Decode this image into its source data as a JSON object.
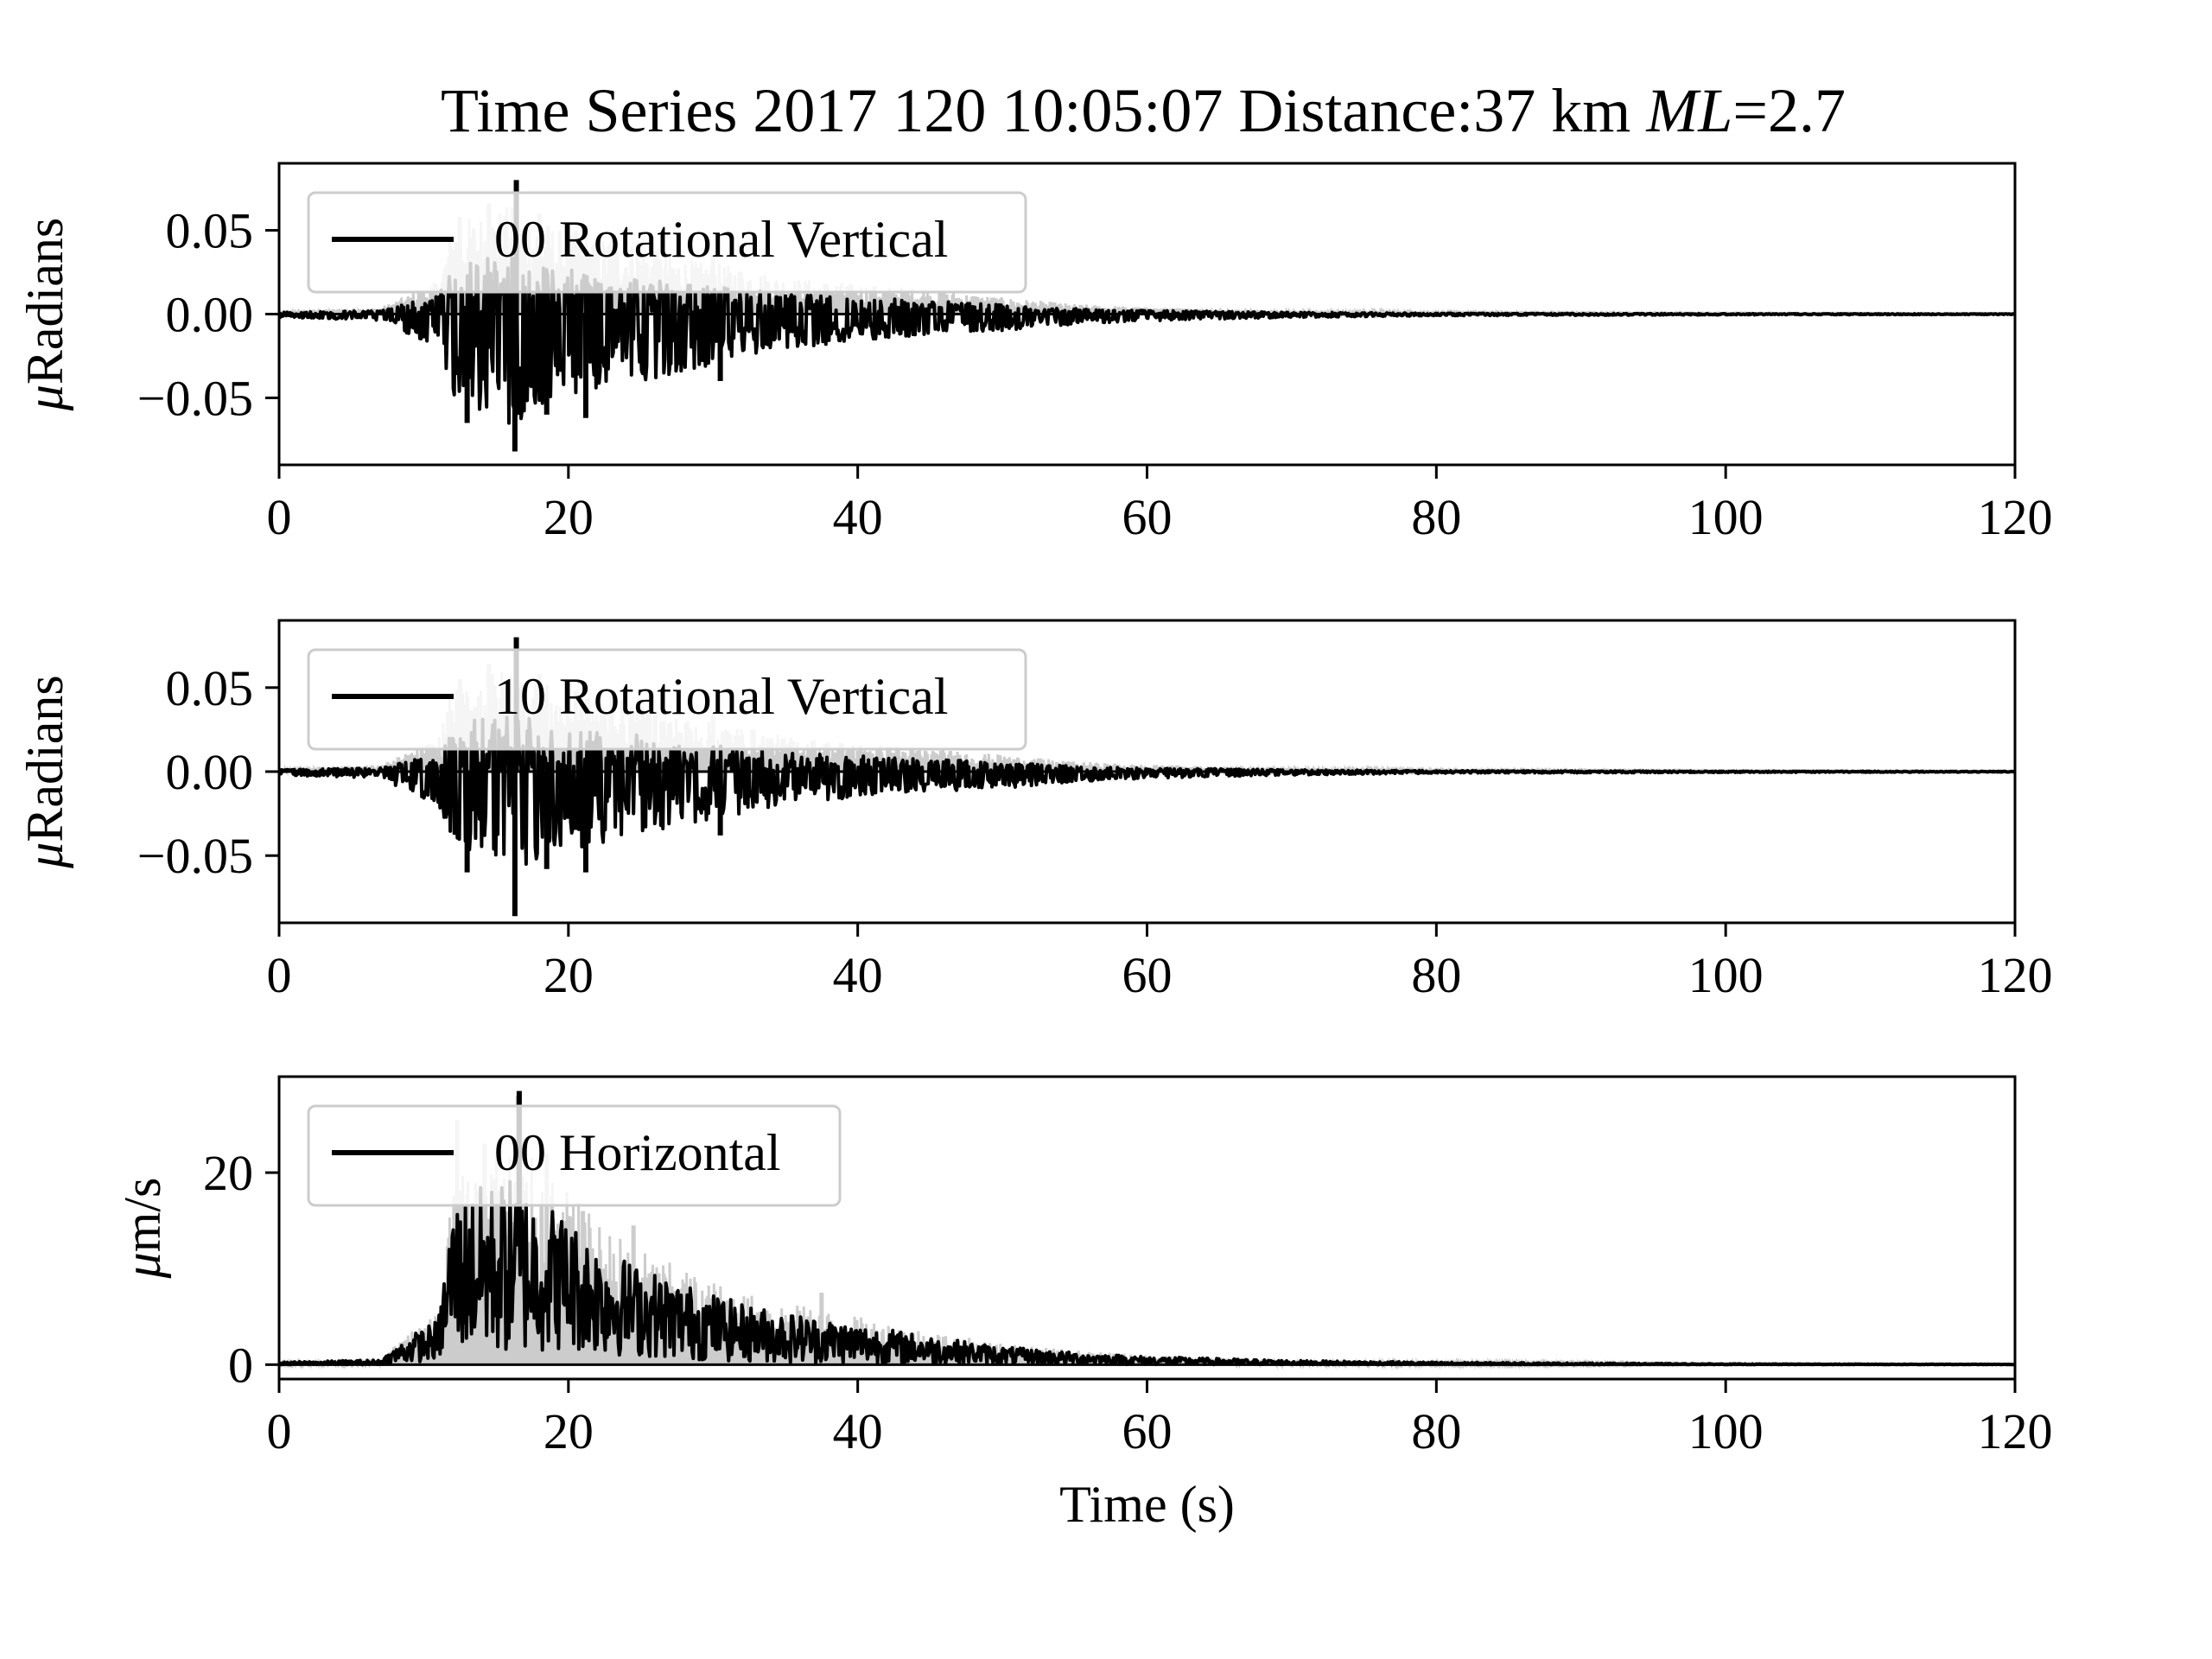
{
  "title": {
    "prefix": "Time Series 2017 120 10:05:07 Distance:37 km ",
    "ml_italic": "ML",
    "suffix": "=2.7"
  },
  "colors": {
    "trace": "#000000",
    "envelope": "#cccccc",
    "legend_border": "#cccccc",
    "background": "#ffffff"
  },
  "chart_data": [
    {
      "type": "line",
      "legend": "00 Rotational Vertical",
      "legend_location": "upper-left",
      "ylabel_mu": "μ",
      "ylabel_unit": "Radians",
      "xlabel": "",
      "xlim": [
        0,
        120
      ],
      "ylim": [
        -0.09,
        0.09
      ],
      "xticks": [
        0,
        20,
        40,
        60,
        80,
        100,
        120
      ],
      "yticks": [
        -0.05,
        0.0,
        0.05
      ],
      "ytick_labels": [
        "−0.05",
        "0.00",
        "0.05"
      ],
      "envelope_series": {
        "name": "envelope",
        "x": [
          0,
          7,
          9,
          11,
          12,
          14,
          16,
          18,
          20,
          22,
          25,
          28,
          32,
          35,
          40,
          45,
          50,
          55,
          60,
          70,
          80,
          100,
          120
        ],
        "values": [
          0.002,
          0.004,
          0.012,
          0.02,
          0.055,
          0.06,
          0.065,
          0.058,
          0.048,
          0.047,
          0.042,
          0.033,
          0.028,
          0.022,
          0.018,
          0.015,
          0.01,
          0.006,
          0.004,
          0.002,
          0.001,
          0.0005,
          0.0003
        ]
      },
      "envelope_peaks": [
        {
          "x": 12.5,
          "y": 0.058
        },
        {
          "x": 14.5,
          "y": 0.066
        },
        {
          "x": 16.4,
          "y": 0.077
        },
        {
          "x": 18.0,
          "y": 0.06
        },
        {
          "x": 20.5,
          "y": 0.05
        },
        {
          "x": 23.0,
          "y": 0.048
        },
        {
          "x": 26.0,
          "y": 0.038
        },
        {
          "x": 30.0,
          "y": 0.035
        }
      ],
      "negative_envelope": {
        "x": [
          0,
          7,
          9,
          11,
          12,
          14,
          16,
          18,
          20,
          22,
          25,
          28,
          32,
          35,
          40,
          45,
          50,
          55,
          60,
          70,
          80,
          100,
          120
        ],
        "values": [
          -0.002,
          -0.004,
          -0.012,
          -0.02,
          -0.05,
          -0.06,
          -0.068,
          -0.06,
          -0.05,
          -0.045,
          -0.04,
          -0.034,
          -0.026,
          -0.02,
          -0.017,
          -0.012,
          -0.01,
          -0.006,
          -0.004,
          -0.002,
          -0.001,
          -0.0005,
          -0.0003
        ]
      },
      "negative_peaks": [
        {
          "x": 13.0,
          "y": -0.065
        },
        {
          "x": 16.3,
          "y": -0.082
        },
        {
          "x": 18.5,
          "y": -0.06
        },
        {
          "x": 21.2,
          "y": -0.062
        },
        {
          "x": 30.5,
          "y": -0.04
        }
      ],
      "trace_peak": {
        "x": 16.4,
        "y": 0.08
      }
    },
    {
      "type": "line",
      "legend": "10 Rotational Vertical",
      "legend_location": "upper-left",
      "ylabel_mu": "μ",
      "ylabel_unit": "Radians",
      "xlabel": "",
      "xlim": [
        0,
        120
      ],
      "ylim": [
        -0.09,
        0.09
      ],
      "xticks": [
        0,
        20,
        40,
        60,
        80,
        100,
        120
      ],
      "yticks": [
        -0.05,
        0.0,
        0.05
      ],
      "ytick_labels": [
        "−0.05",
        "0.00",
        "0.05"
      ],
      "envelope_series": {
        "name": "envelope",
        "x": [
          0,
          7,
          9,
          11,
          12,
          14,
          16,
          18,
          20,
          22,
          25,
          28,
          32,
          35,
          40,
          45,
          50,
          55,
          60,
          70,
          80,
          100,
          120
        ],
        "values": [
          0.002,
          0.004,
          0.012,
          0.02,
          0.05,
          0.058,
          0.063,
          0.055,
          0.046,
          0.045,
          0.04,
          0.032,
          0.027,
          0.021,
          0.017,
          0.014,
          0.01,
          0.006,
          0.004,
          0.002,
          0.001,
          0.0005,
          0.0003
        ]
      },
      "envelope_peaks": [
        {
          "x": 12.5,
          "y": 0.055
        },
        {
          "x": 14.5,
          "y": 0.064
        },
        {
          "x": 16.4,
          "y": 0.078
        },
        {
          "x": 18.0,
          "y": 0.058
        },
        {
          "x": 20.5,
          "y": 0.048
        },
        {
          "x": 23.0,
          "y": 0.046
        },
        {
          "x": 26.0,
          "y": 0.036
        },
        {
          "x": 30.0,
          "y": 0.033
        }
      ],
      "negative_envelope": {
        "x": [
          0,
          7,
          9,
          11,
          12,
          14,
          16,
          18,
          20,
          22,
          25,
          28,
          32,
          35,
          40,
          45,
          50,
          55,
          60,
          70,
          80,
          100,
          120
        ],
        "values": [
          -0.002,
          -0.004,
          -0.012,
          -0.02,
          -0.048,
          -0.055,
          -0.065,
          -0.058,
          -0.048,
          -0.043,
          -0.038,
          -0.032,
          -0.025,
          -0.019,
          -0.016,
          -0.012,
          -0.01,
          -0.006,
          -0.004,
          -0.002,
          -0.001,
          -0.0005,
          -0.0003
        ]
      },
      "negative_peaks": [
        {
          "x": 13.0,
          "y": -0.06
        },
        {
          "x": 16.3,
          "y": -0.086
        },
        {
          "x": 18.5,
          "y": -0.058
        },
        {
          "x": 21.2,
          "y": -0.06
        },
        {
          "x": 30.5,
          "y": -0.038
        }
      ],
      "trace_peak": {
        "x": 16.4,
        "y": 0.08
      }
    },
    {
      "type": "line",
      "legend": "00 Horizontal",
      "legend_location": "upper-left",
      "ylabel_mu": "μ",
      "ylabel_unit": "m/s",
      "xlabel": "Time (s)",
      "xlim": [
        0,
        120
      ],
      "ylim": [
        -1.5,
        30
      ],
      "xticks": [
        0,
        20,
        40,
        60,
        80,
        100,
        120
      ],
      "yticks": [
        0,
        20
      ],
      "ytick_labels": [
        "0",
        "20"
      ],
      "envelope_series": {
        "name": "envelope",
        "x": [
          0,
          7,
          9,
          11,
          12,
          14,
          16,
          18,
          20,
          22,
          25,
          28,
          32,
          35,
          40,
          45,
          50,
          55,
          60,
          70,
          80,
          100,
          120
        ],
        "values": [
          0.3,
          0.6,
          3.5,
          5.5,
          20,
          22,
          23,
          21,
          18,
          15,
          12,
          10,
          7.5,
          6.5,
          5,
          3.5,
          2.2,
          1.5,
          1.0,
          0.5,
          0.3,
          0.1,
          0.05
        ]
      },
      "envelope_peaks": [
        {
          "x": 12.3,
          "y": 25.5
        },
        {
          "x": 14.2,
          "y": 23.0
        },
        {
          "x": 16.5,
          "y": 28.0
        },
        {
          "x": 18.5,
          "y": 22.0
        },
        {
          "x": 21.0,
          "y": 16.0
        },
        {
          "x": 24.5,
          "y": 14.5
        },
        {
          "x": 37.5,
          "y": 7.5
        }
      ],
      "negative_envelope": {
        "x": [
          0,
          7,
          9,
          11,
          12,
          14,
          16,
          18,
          20,
          22,
          25,
          28,
          32,
          35,
          40,
          45,
          50,
          55,
          60,
          70,
          80,
          100,
          120
        ],
        "values": [
          0,
          0,
          0.2,
          0.5,
          1.5,
          1.0,
          0.8,
          1.2,
          1.5,
          1.0,
          0.8,
          0.5,
          0.3,
          0.2,
          0.1,
          0.1,
          0.05,
          0.05,
          0.0,
          0.0,
          0.0,
          0.0,
          0.0
        ]
      },
      "negative_peaks": [],
      "trace_peak": {
        "x": 16.6,
        "y": 28.5
      }
    }
  ]
}
